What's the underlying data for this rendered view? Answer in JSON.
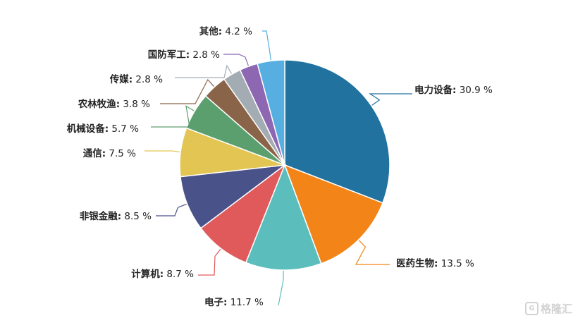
{
  "chart_data": {
    "type": "pie",
    "unit": "%",
    "slices": [
      {
        "label": "电力设备",
        "value": 30.9,
        "color": "#21729f"
      },
      {
        "label": "医药生物",
        "value": 13.5,
        "color": "#f28418"
      },
      {
        "label": "电子",
        "value": 11.7,
        "color": "#5cbdbd"
      },
      {
        "label": "计算机",
        "value": 8.7,
        "color": "#e05a5c"
      },
      {
        "label": "非银金融",
        "value": 8.5,
        "color": "#4a528a"
      },
      {
        "label": "通信",
        "value": 7.5,
        "color": "#e3c554"
      },
      {
        "label": "机械设备",
        "value": 5.7,
        "color": "#5c9f6e"
      },
      {
        "label": "农林牧渔",
        "value": 3.8,
        "color": "#8a6448"
      },
      {
        "label": "传媒",
        "value": 2.8,
        "color": "#a3acb3"
      },
      {
        "label": "国防军工",
        "value": 2.8,
        "color": "#8d67b2"
      },
      {
        "label": "其他",
        "value": 4.2,
        "color": "#56afe0"
      }
    ]
  },
  "watermark": {
    "text": "格隆汇",
    "logo": "G"
  }
}
